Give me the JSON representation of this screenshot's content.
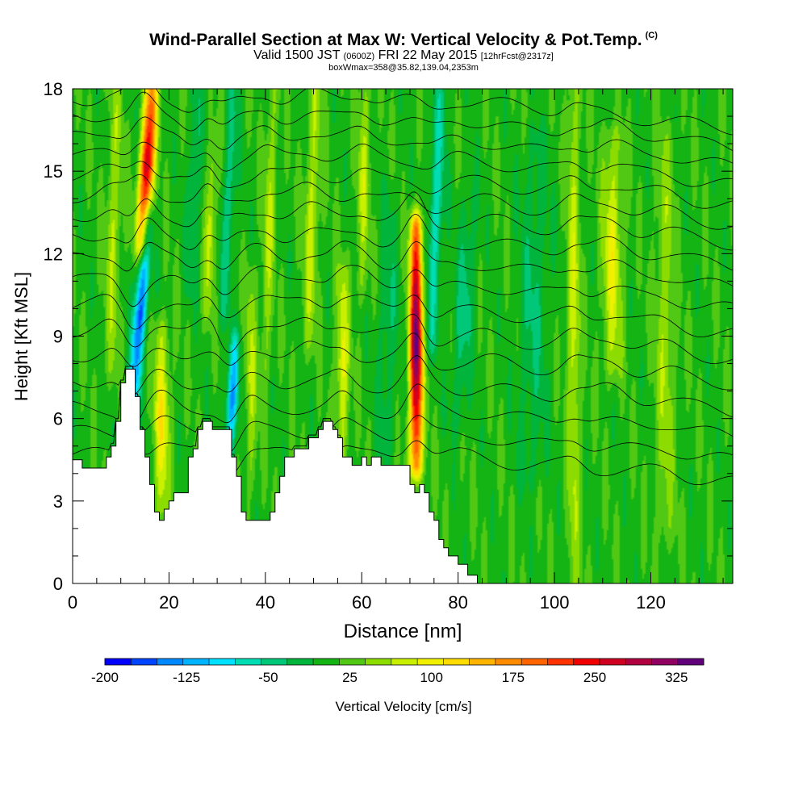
{
  "header": {
    "title": "Wind-Parallel Section at Max W: Vertical Velocity & Pot.Temp.",
    "copyright": "(C)",
    "valid_prefix": "Valid 1500 JST",
    "valid_utc": "(0600Z)",
    "valid_date": "FRI 22 May 2015",
    "forecast": "[12hrFcst@2317z]",
    "box_info": "boxWmax=358@35.82,139.04,2353m"
  },
  "chart_data": {
    "type": "heatmap",
    "xlabel": "Distance [nm]",
    "ylabel": "Height [Kft MSL]",
    "xlim": [
      0,
      137
    ],
    "ylim": [
      0,
      18
    ],
    "x_ticks": [
      0,
      20,
      40,
      60,
      80,
      100,
      120
    ],
    "y_ticks": [
      0,
      3,
      6,
      9,
      12,
      15,
      18
    ],
    "colorbar": {
      "label": "Vertical Velocity [cm/s]",
      "min": -200,
      "max": 350,
      "step": 25,
      "tick_labels": [
        "-200",
        "-125",
        "-50",
        "25",
        "100",
        "175",
        "250",
        "325"
      ],
      "colors": [
        "#0000ff",
        "#0044ff",
        "#0088ff",
        "#00b4ff",
        "#00e0ff",
        "#00dcb4",
        "#00c878",
        "#00b43c",
        "#14b414",
        "#50c814",
        "#8cdc00",
        "#c8f000",
        "#f0f000",
        "#ffdc00",
        "#ffb400",
        "#ff8c00",
        "#ff6400",
        "#ff3200",
        "#f00000",
        "#d00020",
        "#b00040",
        "#900060",
        "#60007a"
      ]
    },
    "terrain_nm_kft": [
      [
        0,
        4.5
      ],
      [
        2,
        4.5
      ],
      [
        2,
        4.2
      ],
      [
        7,
        4.2
      ],
      [
        7,
        4.6
      ],
      [
        8,
        4.6
      ],
      [
        8,
        5.0
      ],
      [
        9,
        5.0
      ],
      [
        9,
        5.9
      ],
      [
        10,
        5.9
      ],
      [
        10,
        7.3
      ],
      [
        11,
        7.3
      ],
      [
        11,
        7.8
      ],
      [
        13,
        7.8
      ],
      [
        13,
        6.8
      ],
      [
        14,
        6.8
      ],
      [
        14,
        5.6
      ],
      [
        15,
        5.6
      ],
      [
        15,
        4.6
      ],
      [
        16,
        4.6
      ],
      [
        16,
        3.6
      ],
      [
        17,
        3.6
      ],
      [
        17,
        2.6
      ],
      [
        18,
        2.6
      ],
      [
        18,
        2.3
      ],
      [
        19,
        2.3
      ],
      [
        19,
        2.7
      ],
      [
        20,
        2.7
      ],
      [
        20,
        3.0
      ],
      [
        21,
        3.0
      ],
      [
        21,
        3.3
      ],
      [
        24,
        3.3
      ],
      [
        24,
        4.6
      ],
      [
        25,
        4.6
      ],
      [
        25,
        4.9
      ],
      [
        26,
        4.9
      ],
      [
        26,
        5.6
      ],
      [
        27,
        5.6
      ],
      [
        27,
        5.9
      ],
      [
        29,
        5.9
      ],
      [
        29,
        5.6
      ],
      [
        33,
        5.6
      ],
      [
        33,
        4.6
      ],
      [
        34,
        4.6
      ],
      [
        34,
        3.9
      ],
      [
        35,
        3.9
      ],
      [
        35,
        2.6
      ],
      [
        36,
        2.6
      ],
      [
        36,
        2.3
      ],
      [
        41,
        2.3
      ],
      [
        41,
        2.6
      ],
      [
        42,
        2.6
      ],
      [
        42,
        3.3
      ],
      [
        43,
        3.3
      ],
      [
        43,
        3.9
      ],
      [
        44,
        3.9
      ],
      [
        44,
        4.6
      ],
      [
        46,
        4.6
      ],
      [
        46,
        4.9
      ],
      [
        49,
        4.9
      ],
      [
        49,
        5.3
      ],
      [
        51,
        5.3
      ],
      [
        51,
        5.6
      ],
      [
        52,
        5.6
      ],
      [
        52,
        5.9
      ],
      [
        54,
        5.9
      ],
      [
        54,
        5.6
      ],
      [
        55,
        5.6
      ],
      [
        55,
        5.3
      ],
      [
        56,
        5.3
      ],
      [
        56,
        4.6
      ],
      [
        58,
        4.6
      ],
      [
        58,
        4.3
      ],
      [
        60,
        4.3
      ],
      [
        60,
        4.6
      ],
      [
        61,
        4.6
      ],
      [
        61,
        4.3
      ],
      [
        62,
        4.3
      ],
      [
        62,
        4.6
      ],
      [
        64,
        4.6
      ],
      [
        64,
        4.3
      ],
      [
        70,
        4.3
      ],
      [
        70,
        3.6
      ],
      [
        71,
        3.6
      ],
      [
        71,
        3.3
      ],
      [
        72,
        3.3
      ],
      [
        72,
        3.6
      ],
      [
        73,
        3.6
      ],
      [
        73,
        3.3
      ],
      [
        74,
        3.3
      ],
      [
        74,
        2.6
      ],
      [
        75,
        2.6
      ],
      [
        75,
        2.3
      ],
      [
        76,
        2.3
      ],
      [
        76,
        1.6
      ],
      [
        77,
        1.6
      ],
      [
        77,
        1.3
      ],
      [
        78,
        1.3
      ],
      [
        78,
        1.0
      ],
      [
        80,
        1.0
      ],
      [
        80,
        0.7
      ],
      [
        82,
        0.7
      ],
      [
        82,
        0.3
      ],
      [
        84,
        0.3
      ],
      [
        84,
        0.0
      ],
      [
        137,
        0.0
      ]
    ],
    "w_features": [
      {
        "x": 14.5,
        "z_bot": 12.5,
        "z_top": 18.0,
        "w": 290,
        "width_nm": 1.4,
        "tilt": 0.35
      },
      {
        "x": 12.5,
        "z_bot": 6.5,
        "z_top": 13.0,
        "w": -185,
        "width_nm": 1.3,
        "tilt": 0.45
      },
      {
        "x": 32.5,
        "z_bot": 4.8,
        "z_top": 8.5,
        "w": -150,
        "width_nm": 1.2,
        "tilt": 0.3
      },
      {
        "x": 71.3,
        "z_bot": 4.5,
        "z_top": 12.8,
        "w": 358,
        "width_nm": 1.3,
        "tilt": 0.0
      },
      {
        "x": 18.5,
        "z_bot": 3.0,
        "z_top": 9.0,
        "w": 105,
        "width_nm": 1.6,
        "tilt": 0.0
      },
      {
        "x": 56.0,
        "z_bot": 5.0,
        "z_top": 11.0,
        "w": 95,
        "width_nm": 1.3,
        "tilt": 0.0
      },
      {
        "x": 31.5,
        "z_bot": 10.0,
        "z_top": 18.0,
        "w": -70,
        "width_nm": 1.2,
        "tilt": 0.25
      },
      {
        "x": 24.5,
        "z_bot": 11.0,
        "z_top": 18.0,
        "w": -60,
        "width_nm": 1.2,
        "tilt": 0.2
      },
      {
        "x": 74.5,
        "z_bot": 9.0,
        "z_top": 18.0,
        "w": -90,
        "width_nm": 1.5,
        "tilt": 0.2
      },
      {
        "x": 80.0,
        "z_bot": 6.0,
        "z_top": 14.0,
        "w": -55,
        "width_nm": 2.0,
        "tilt": 0.3
      },
      {
        "x": 112.0,
        "z_bot": 8.0,
        "z_top": 16.0,
        "w": 90,
        "width_nm": 2.0,
        "tilt": 0.0
      },
      {
        "x": 104.0,
        "z_bot": 0.3,
        "z_top": 18.0,
        "w": 75,
        "width_nm": 1.3,
        "tilt": 0.0
      },
      {
        "x": 95.0,
        "z_bot": 4.0,
        "z_top": 16.0,
        "w": -45,
        "width_nm": 3.0,
        "tilt": 0.1
      },
      {
        "x": 49.0,
        "z_bot": 9.0,
        "z_top": 18.0,
        "w": 70,
        "width_nm": 1.5,
        "tilt": 0.15
      },
      {
        "x": 40.0,
        "z_bot": 8.0,
        "z_top": 18.0,
        "w": 60,
        "width_nm": 1.2,
        "tilt": 0.15
      },
      {
        "x": 28.0,
        "z_bot": 10.0,
        "z_top": 16.0,
        "w": 75,
        "width_nm": 1.0,
        "tilt": 0.2
      },
      {
        "x": 37.0,
        "z_bot": 4.0,
        "z_top": 11.0,
        "w": 60,
        "width_nm": 1.2,
        "tilt": 0.0
      },
      {
        "x": 65.0,
        "z_bot": 5.0,
        "z_top": 14.0,
        "w": -40,
        "width_nm": 2.0,
        "tilt": 0.1
      },
      {
        "x": 8.0,
        "z_bot": 8.0,
        "z_top": 18.0,
        "w": 60,
        "width_nm": 1.5,
        "tilt": 0.1
      },
      {
        "x": 123.0,
        "z_bot": 2.0,
        "z_top": 16.0,
        "w": 55,
        "width_nm": 2.0,
        "tilt": 0.0
      },
      {
        "x": 60.0,
        "z_bot": 11.0,
        "z_top": 18.0,
        "w": 65,
        "width_nm": 1.3,
        "tilt": 0.1
      }
    ],
    "theta_levels_kft": [
      4.7,
      5.5,
      6.4,
      7.3,
      8.3,
      9.2,
      10.1,
      11.0,
      11.8,
      12.6,
      13.4,
      14.1,
      14.8,
      15.5,
      16.2,
      16.9,
      17.6
    ]
  }
}
